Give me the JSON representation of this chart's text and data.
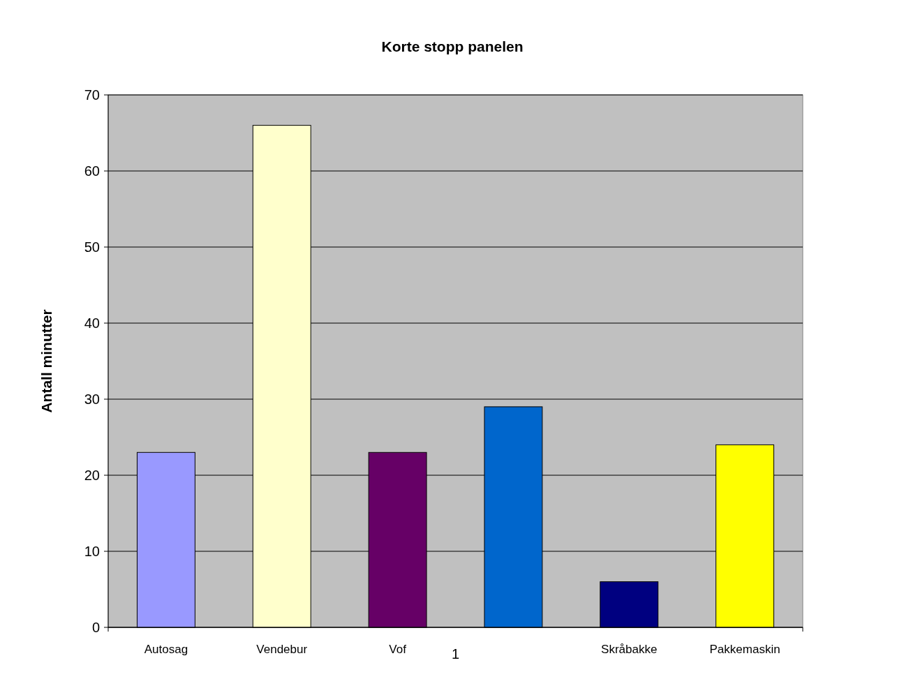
{
  "chart_data": {
    "type": "bar",
    "title": "Korte stopp panelen",
    "ylabel": "Antall minutter",
    "categories": [
      "1"
    ],
    "series": [
      {
        "name": "Autosag",
        "color": "#9999ff",
        "values": [
          23
        ]
      },
      {
        "name": "Vendebur",
        "color": "#ffffcc",
        "values": [
          66
        ]
      },
      {
        "name": "Vof",
        "color": "#660066",
        "values": [
          23
        ]
      },
      {
        "color": "#0066cc",
        "values": [
          29
        ]
      },
      {
        "name": "Skråbakke",
        "color": "#000080",
        "values": [
          6
        ]
      },
      {
        "name": "Pakkemaskin",
        "color": "#ffff00",
        "values": [
          24
        ]
      }
    ],
    "ylim": [
      0,
      70
    ],
    "yticks": [
      0,
      10,
      20,
      30,
      40,
      50,
      60,
      70
    ],
    "grid": "y"
  }
}
